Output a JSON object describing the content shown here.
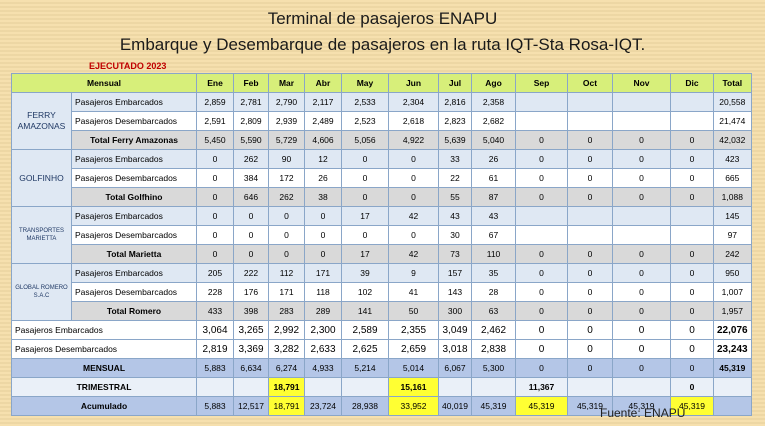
{
  "title_line1": "Terminal de pasajeros ENAPU",
  "title_line2": "Embarque y Desembarque de pasajeros en la ruta IQT-Sta Rosa-IQT.",
  "year_label": "EJECUTADO 2023",
  "source": "Fuente: ENAPU",
  "headers": [
    "Mensual",
    "Ene",
    "Feb",
    "Mar",
    "Abr",
    "May",
    "Jun",
    "Jul",
    "Ago",
    "Sep",
    "Oct",
    "Nov",
    "Dic",
    "Total"
  ],
  "companies": [
    {
      "name": "FERRY AMAZONAS",
      "rows": [
        {
          "label": "Pasajeros Embarcados",
          "values": [
            "2,859",
            "2,781",
            "2,790",
            "2,117",
            "2,533",
            "2,304",
            "2,816",
            "2,358",
            "",
            "",
            "",
            ""
          ],
          "total": "20,558"
        },
        {
          "label": "Pasajeros Desembarcados",
          "values": [
            "2,591",
            "2,809",
            "2,939",
            "2,489",
            "2,523",
            "2,618",
            "2,823",
            "2,682",
            "",
            "",
            "",
            ""
          ],
          "total": "21,474"
        },
        {
          "label": "Total Ferry Amazonas",
          "values": [
            "5,450",
            "5,590",
            "5,729",
            "4,606",
            "5,056",
            "4,922",
            "5,639",
            "5,040",
            "0",
            "0",
            "0",
            "0"
          ],
          "total": "42,032"
        }
      ]
    },
    {
      "name": "GOLFINHO",
      "rows": [
        {
          "label": "Pasajeros Embarcados",
          "values": [
            "0",
            "262",
            "90",
            "12",
            "0",
            "0",
            "33",
            "26",
            "0",
            "0",
            "0",
            "0"
          ],
          "total": "423"
        },
        {
          "label": "Pasajeros Desembarcados",
          "values": [
            "0",
            "384",
            "172",
            "26",
            "0",
            "0",
            "22",
            "61",
            "0",
            "0",
            "0",
            "0"
          ],
          "total": "665"
        },
        {
          "label": "Total Golfhino",
          "values": [
            "0",
            "646",
            "262",
            "38",
            "0",
            "0",
            "55",
            "87",
            "0",
            "0",
            "0",
            "0"
          ],
          "total": "1,088"
        }
      ]
    },
    {
      "name": "TRANSPORTES MARIETTA",
      "rows": [
        {
          "label": "Pasajeros Embarcados",
          "values": [
            "0",
            "0",
            "0",
            "0",
            "17",
            "42",
            "43",
            "43",
            "",
            "",
            "",
            ""
          ],
          "total": "145"
        },
        {
          "label": "Pasajeros Desembarcados",
          "values": [
            "0",
            "0",
            "0",
            "0",
            "0",
            "0",
            "30",
            "67",
            "",
            "",
            "",
            ""
          ],
          "total": "97"
        },
        {
          "label": "Total Marietta",
          "values": [
            "0",
            "0",
            "0",
            "0",
            "17",
            "42",
            "73",
            "110",
            "0",
            "0",
            "0",
            "0"
          ],
          "total": "242"
        }
      ]
    },
    {
      "name": "GLOBAL ROMERO S.A.C",
      "rows": [
        {
          "label": "Pasajeros Embarcados",
          "values": [
            "205",
            "222",
            "112",
            "171",
            "39",
            "9",
            "157",
            "35",
            "0",
            "0",
            "0",
            "0"
          ],
          "total": "950"
        },
        {
          "label": "Pasajeros Desembarcados",
          "values": [
            "228",
            "176",
            "171",
            "118",
            "102",
            "41",
            "143",
            "28",
            "0",
            "0",
            "0",
            "0"
          ],
          "total": "1,007"
        },
        {
          "label": "Total Romero",
          "values": [
            "433",
            "398",
            "283",
            "289",
            "141",
            "50",
            "300",
            "63",
            "0",
            "0",
            "0",
            "0"
          ],
          "total": "1,957"
        }
      ]
    }
  ],
  "summary": {
    "embarcados": {
      "label": "Pasajeros Embarcados",
      "values": [
        "3,064",
        "3,265",
        "2,992",
        "2,300",
        "2,589",
        "2,355",
        "3,049",
        "2,462",
        "0",
        "0",
        "0",
        "0"
      ],
      "total": "22,076"
    },
    "desembarcados": {
      "label": "Pasajeros Desembarcados",
      "values": [
        "2,819",
        "3,369",
        "3,282",
        "2,633",
        "2,625",
        "2,659",
        "3,018",
        "2,838",
        "0",
        "0",
        "0",
        "0"
      ],
      "total": "23,243"
    },
    "mensual": {
      "label": "MENSUAL",
      "values": [
        "5,883",
        "6,634",
        "6,274",
        "4,933",
        "5,214",
        "5,014",
        "6,067",
        "5,300",
        "0",
        "0",
        "0",
        "0"
      ],
      "total": "45,319"
    },
    "trimestral": {
      "label": "TRIMESTRAL",
      "values": [
        "",
        "",
        "18,791",
        "",
        "",
        "15,161",
        "",
        "",
        "11,367",
        "",
        "",
        "0"
      ],
      "total": ""
    },
    "acumulado": {
      "label": "Acumulado",
      "values": [
        "5,883",
        "12,517",
        "18,791",
        "23,724",
        "28,938",
        "33,952",
        "40,019",
        "45,319",
        "45,319",
        "45,319",
        "45,319",
        "45,319"
      ],
      "total": ""
    }
  },
  "highlight_color": "#ffff33"
}
